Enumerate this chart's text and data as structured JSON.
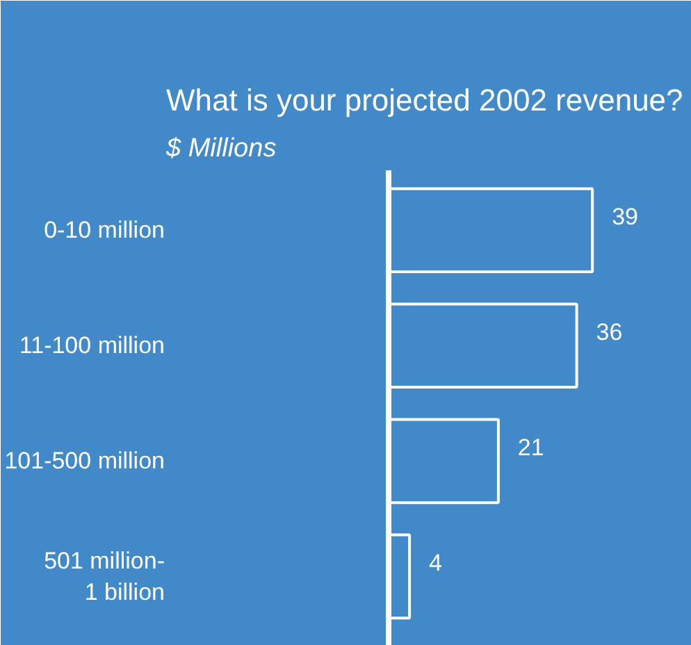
{
  "chart_data": {
    "type": "bar",
    "orientation": "horizontal",
    "title": "What is your projected 2002 revenue?",
    "subtitle": "$ Millions",
    "categories": [
      "0-10 million",
      "11-100 million",
      "101-500 million",
      "501 million-\n1 billion"
    ],
    "values": [
      39,
      36,
      21,
      4
    ],
    "color": "#ffffff",
    "xlim": [
      0,
      58
    ],
    "tick_labels": "y",
    "data_labels": true
  }
}
